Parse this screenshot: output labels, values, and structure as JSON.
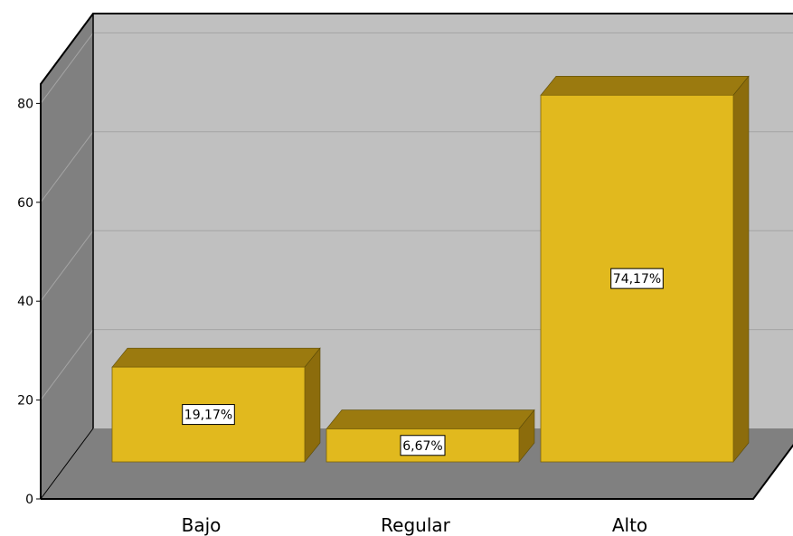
{
  "chart_data": {
    "type": "bar",
    "categories": [
      "Bajo",
      "Regular",
      "Alto"
    ],
    "values": [
      19.17,
      6.67,
      74.17
    ],
    "data_labels": [
      "19,17%",
      "6,67%",
      "74,17%"
    ],
    "yticks": [
      "0",
      "20",
      "40",
      "60",
      "80"
    ],
    "ylim": [
      0,
      80
    ],
    "grid": true,
    "three_d": true,
    "colors": {
      "bar_front": "#e1b91e",
      "bar_top": "#9b7a0f",
      "bar_side": "#8c6c0c",
      "back_wall": "#c0c0c0",
      "side_wall": "#808080",
      "floor": "#808080",
      "grid": "#a4a4a4"
    }
  }
}
